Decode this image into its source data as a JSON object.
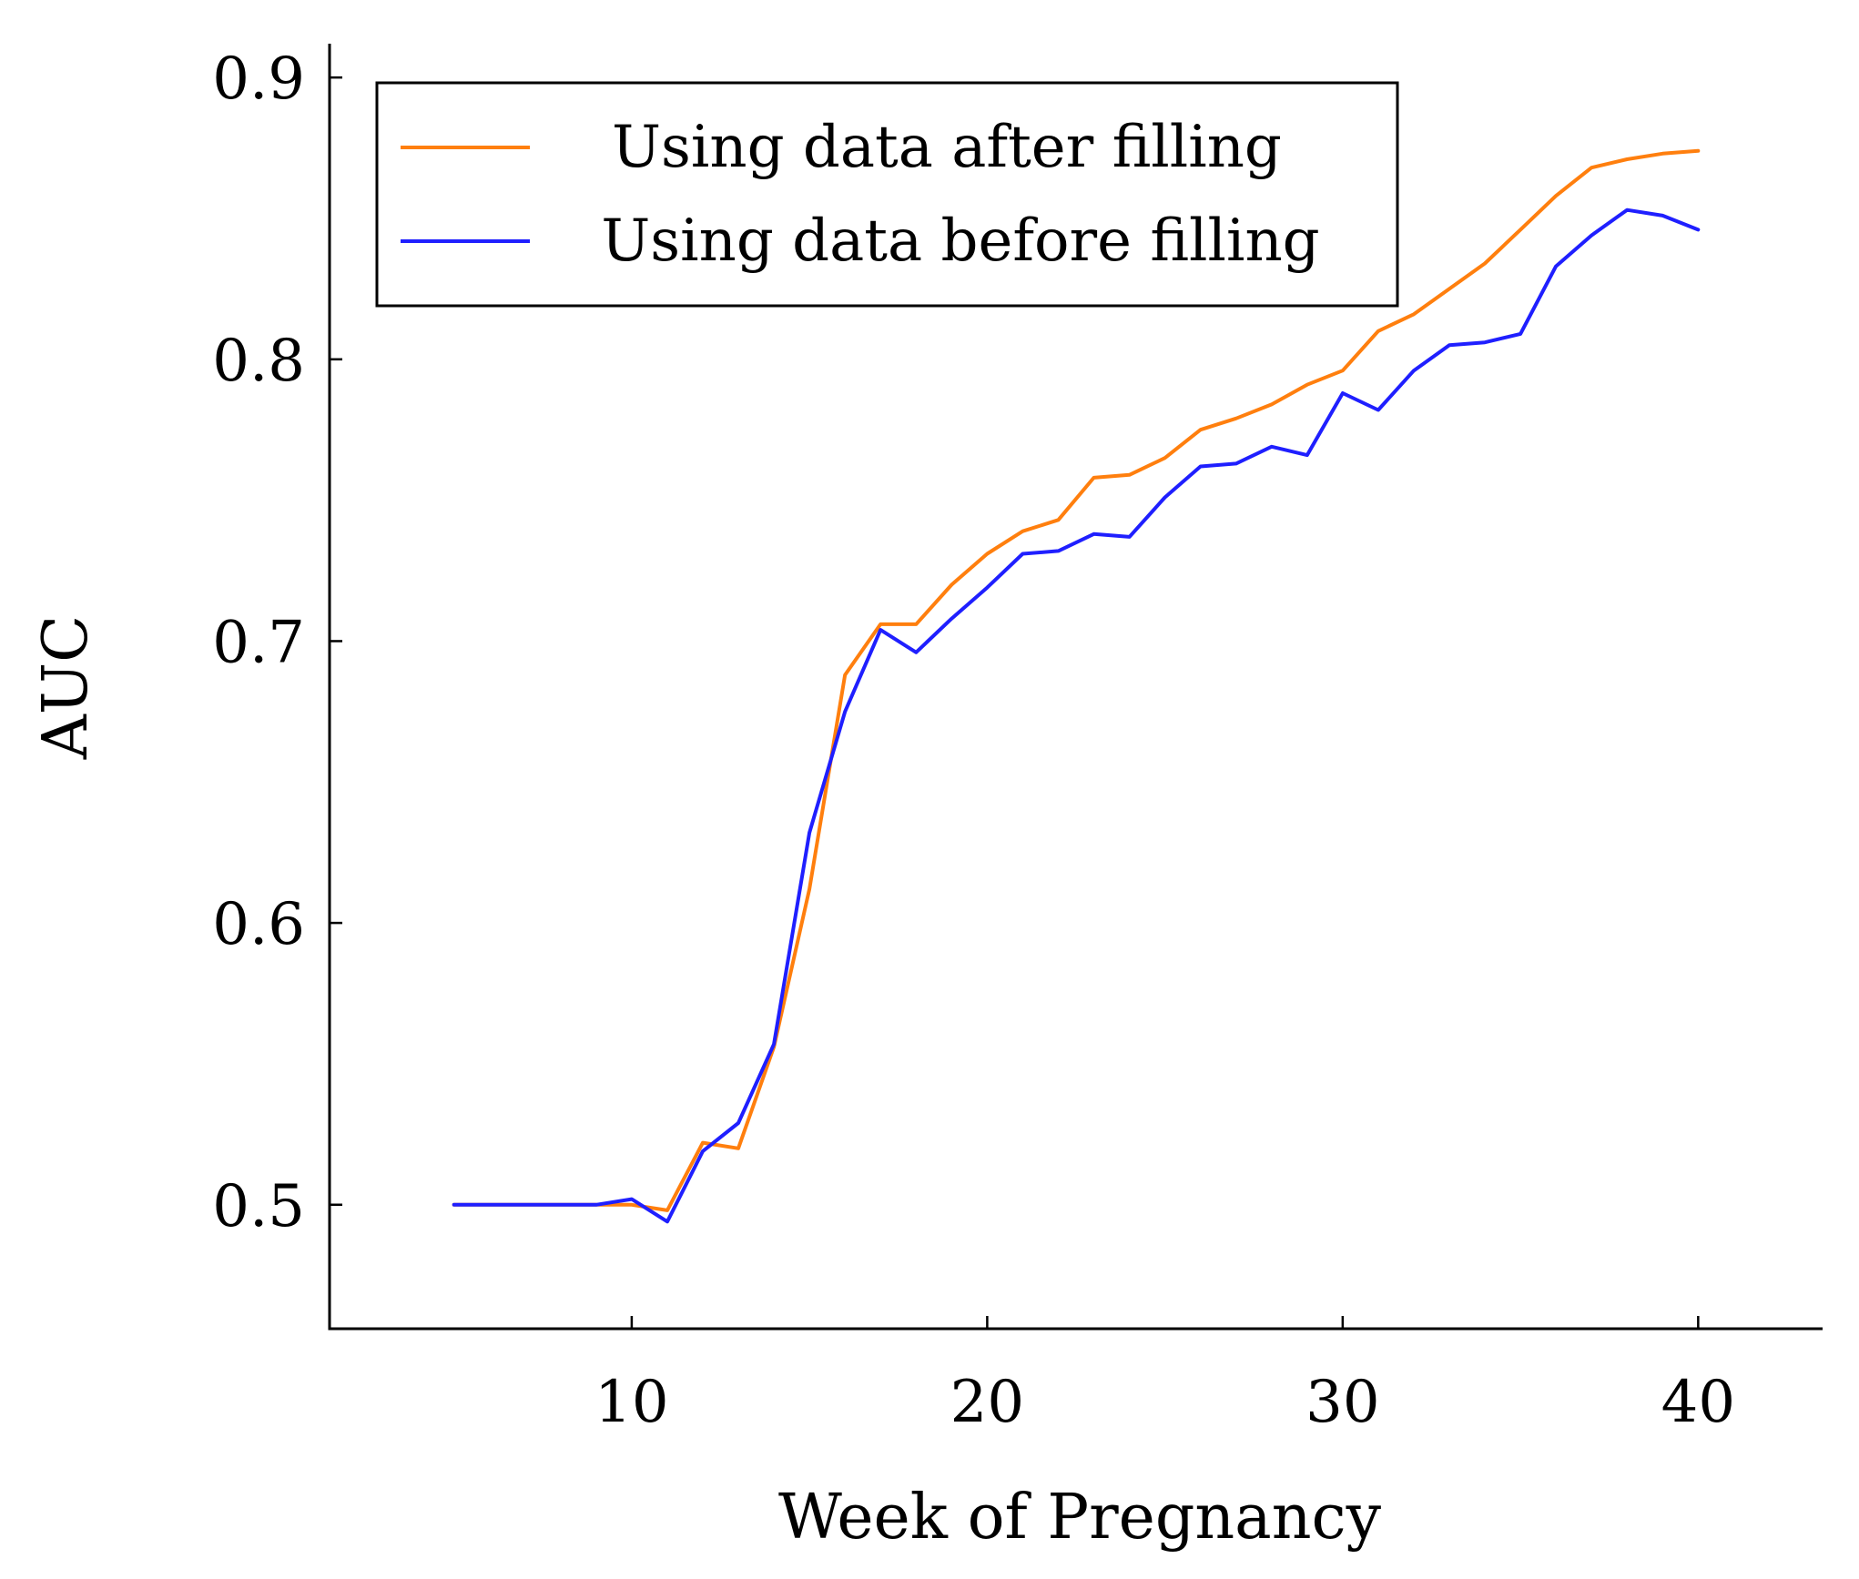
{
  "chart_data": {
    "type": "line",
    "title": "",
    "xlabel": "Week of Pregnancy",
    "ylabel": "AUC",
    "xlim": [
      1.5,
      43.5
    ],
    "ylim": [
      0.456,
      0.912
    ],
    "xticks": [
      10,
      20,
      30,
      40
    ],
    "xtick_labels": [
      "10",
      "20",
      "30",
      "40"
    ],
    "yticks": [
      0.5,
      0.6,
      0.7,
      0.8,
      0.9
    ],
    "ytick_labels": [
      "0.5",
      "0.6",
      "0.7",
      "0.8",
      "0.9"
    ],
    "grid": false,
    "legend_position": "top-left",
    "x": [
      5,
      6,
      7,
      8,
      9,
      10,
      11,
      12,
      13,
      14,
      15,
      16,
      17,
      18,
      19,
      20,
      21,
      22,
      23,
      24,
      25,
      26,
      27,
      28,
      29,
      30,
      31,
      32,
      33,
      34,
      35,
      36,
      37,
      38,
      39,
      40
    ],
    "series": [
      {
        "name": "Using data after filling",
        "color": "#ff7f0e",
        "values": [
          0.5,
          0.5,
          0.5,
          0.5,
          0.5,
          0.5,
          0.498,
          0.522,
          0.52,
          0.556,
          0.612,
          0.688,
          0.706,
          0.706,
          0.72,
          0.731,
          0.739,
          0.743,
          0.758,
          0.759,
          0.765,
          0.775,
          0.779,
          0.784,
          0.791,
          0.796,
          0.81,
          0.816,
          0.825,
          0.834,
          0.846,
          0.858,
          0.868,
          0.871,
          0.873,
          0.874
        ]
      },
      {
        "name": "Using data before filling",
        "color": "#1f1fff",
        "values": [
          0.5,
          0.5,
          0.5,
          0.5,
          0.5,
          0.502,
          0.494,
          0.519,
          0.529,
          0.557,
          0.632,
          0.675,
          0.704,
          0.696,
          0.708,
          0.719,
          0.731,
          0.732,
          0.738,
          0.737,
          0.751,
          0.762,
          0.763,
          0.769,
          0.766,
          0.788,
          0.782,
          0.796,
          0.805,
          0.806,
          0.809,
          0.833,
          0.844,
          0.853,
          0.851,
          0.846
        ]
      }
    ]
  }
}
